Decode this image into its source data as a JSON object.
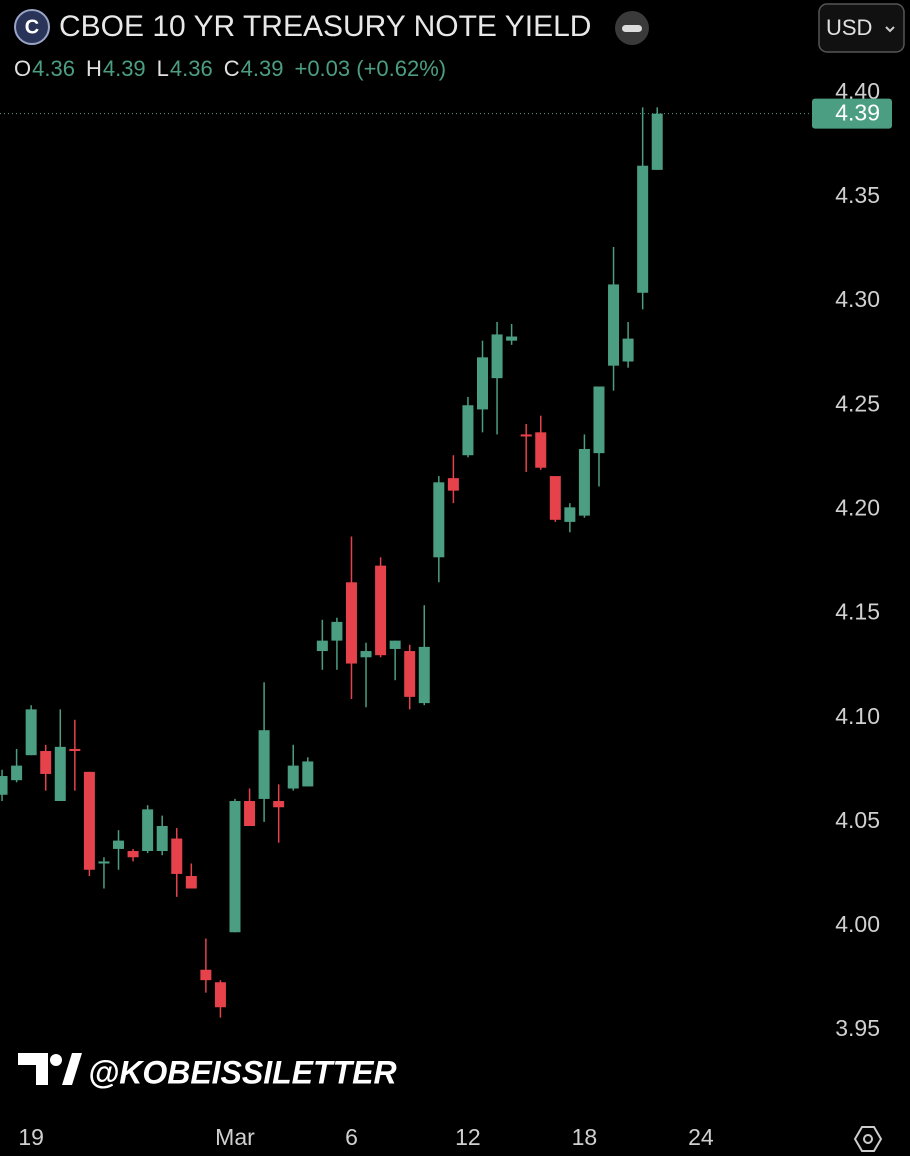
{
  "chart_data": {
    "type": "candlestick",
    "title": "CBOE 10 YR TREASURY NOTE YIELD",
    "symbol_icon": "C",
    "currency": "USD",
    "ohlc": [
      {
        "key": "O",
        "value": "4.36"
      },
      {
        "key": "H",
        "value": "4.39"
      },
      {
        "key": "L",
        "value": "4.36"
      },
      {
        "key": "C",
        "value": "4.39"
      }
    ],
    "change": "+0.03 (+0.62%)",
    "price_label": "4.39",
    "watermark": "@KOBEISSILETTER",
    "up_color": "#4c9e82",
    "down_color": "#e5424b",
    "x": [
      0,
      1,
      2,
      3,
      4,
      5,
      6,
      7,
      8,
      9,
      10,
      11,
      12,
      13,
      14,
      15,
      16,
      17,
      18,
      19,
      20,
      21,
      22,
      23,
      24,
      25,
      26,
      27,
      28,
      29,
      30,
      31,
      32,
      33,
      34,
      35,
      36,
      37,
      38,
      39,
      40,
      41,
      42,
      43,
      44,
      45
    ],
    "open": [
      4.063,
      4.07,
      4.082,
      4.084,
      4.06,
      4.085,
      4.074,
      4.03,
      4.037,
      4.036,
      4.036,
      4.036,
      4.042,
      4.024,
      3.979,
      3.973,
      3.997,
      4.06,
      4.061,
      4.06,
      4.066,
      4.067,
      4.132,
      4.137,
      4.165,
      4.129,
      4.173,
      4.133,
      4.132,
      4.107,
      4.177,
      4.215,
      4.226,
      4.248,
      4.263,
      4.281,
      4.236,
      4.237,
      4.216,
      4.194,
      4.197,
      4.227,
      4.269,
      4.271,
      4.304,
      4.363
    ],
    "high": [
      4.075,
      4.085,
      4.106,
      4.087,
      4.104,
      4.099,
      4.074,
      4.033,
      4.046,
      4.037,
      4.058,
      4.053,
      4.047,
      4.03,
      3.994,
      3.974,
      4.061,
      4.066,
      4.117,
      4.068,
      4.087,
      4.081,
      4.147,
      4.148,
      4.187,
      4.136,
      4.177,
      4.137,
      4.135,
      4.154,
      4.216,
      4.226,
      4.254,
      4.281,
      4.29,
      4.289,
      4.241,
      4.245,
      4.216,
      4.203,
      4.236,
      4.259,
      4.326,
      4.29,
      4.393,
      4.393
    ],
    "low": [
      4.06,
      4.069,
      4.082,
      4.065,
      4.06,
      4.065,
      4.024,
      4.018,
      4.027,
      4.031,
      4.035,
      4.034,
      4.014,
      4.018,
      3.968,
      3.956,
      3.997,
      4.048,
      4.05,
      4.04,
      4.065,
      4.067,
      4.123,
      4.123,
      4.109,
      4.105,
      4.129,
      4.118,
      4.104,
      4.106,
      4.165,
      4.203,
      4.225,
      4.237,
      4.236,
      4.279,
      4.218,
      4.219,
      4.194,
      4.189,
      4.196,
      4.211,
      4.257,
      4.268,
      4.296,
      4.363
    ],
    "close": [
      4.072,
      4.077,
      4.104,
      4.073,
      4.086,
      4.084,
      4.027,
      4.031,
      4.041,
      4.033,
      4.056,
      4.048,
      4.025,
      4.018,
      3.974,
      3.961,
      4.06,
      4.048,
      4.094,
      4.057,
      4.077,
      4.079,
      4.137,
      4.146,
      4.126,
      4.132,
      4.13,
      4.137,
      4.11,
      4.134,
      4.213,
      4.209,
      4.25,
      4.273,
      4.284,
      4.283,
      4.235,
      4.22,
      4.195,
      4.201,
      4.229,
      4.259,
      4.308,
      4.282,
      4.365,
      4.39
    ],
    "xlim": [
      -0.14,
      55.15
    ],
    "xticks": [
      {
        "value": 2,
        "label": "19"
      },
      {
        "value": 16,
        "label": "Mar"
      },
      {
        "value": 24,
        "label": "6"
      },
      {
        "value": 32,
        "label": "12"
      },
      {
        "value": 40,
        "label": "18"
      },
      {
        "value": 48,
        "label": "24"
      }
    ],
    "ylim": [
      3.92,
      4.4
    ],
    "yticks": [
      3.95,
      {
        "value": 4.0,
        "label": "4.00"
      },
      4.05,
      {
        "value": 4.1,
        "label": "4.10"
      },
      4.15,
      {
        "value": 4.2,
        "label": "4.20"
      },
      4.25,
      {
        "value": 4.3,
        "label": "4.30"
      },
      4.35,
      {
        "value": 4.4,
        "label": "4.40"
      }
    ]
  }
}
